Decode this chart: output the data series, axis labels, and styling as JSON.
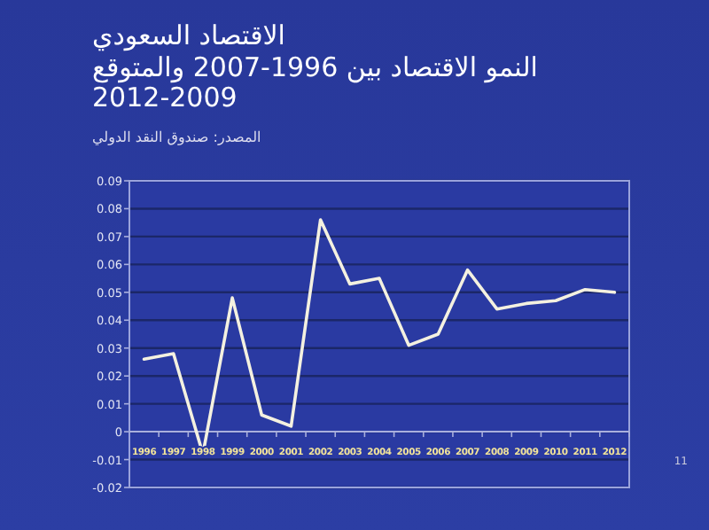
{
  "chart_data": {
    "type": "line",
    "title": "الاقتصاد السعودي",
    "subtitle": "النمو الاقتصاد  بين 1996-2007 والمتوقع 2009-2012",
    "annotations": [
      "المصدر: صندوق النقد الدولي",
      "11"
    ],
    "categories": [
      "1996",
      "1997",
      "1998",
      "1999",
      "2000",
      "2001",
      "2002",
      "2003",
      "2004",
      "2005",
      "2006",
      "2007",
      "2008",
      "2009",
      "2010",
      "2011",
      "2012"
    ],
    "series": [
      {
        "color": "#f4f1e0",
        "values": [
          0.026,
          0.028,
          -0.008,
          0.048,
          0.006,
          0.002,
          0.076,
          0.053,
          0.055,
          0.031,
          0.035,
          0.058,
          0.044,
          0.046,
          0.047,
          0.051,
          0.05
        ]
      }
    ],
    "ylim": [
      -0.02,
      0.09
    ],
    "yticks": [
      -0.02,
      -0.01,
      0,
      0.01,
      0.02,
      0.03,
      0.04,
      0.05,
      0.06,
      0.07,
      0.08,
      0.09
    ],
    "grid": "y",
    "marker": "none",
    "line_style": "solid"
  }
}
